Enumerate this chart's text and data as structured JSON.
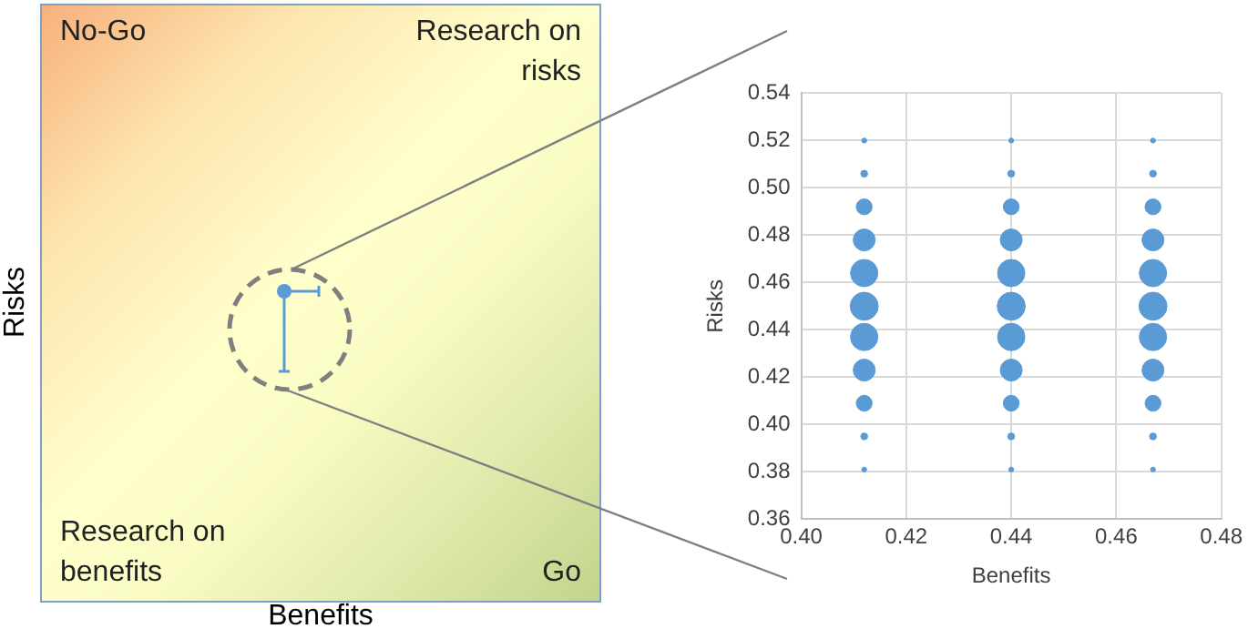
{
  "chart_data": [
    {
      "type": "other",
      "xlabel": "Benefits",
      "ylabel": "Risks",
      "annotations": [
        "No-Go",
        "Research on risks",
        "Research on benefits",
        "Go"
      ]
    },
    {
      "type": "bubble",
      "xlabel": "Benefits",
      "ylabel": "Risks",
      "color": "#5b9bd5",
      "x": [
        0.412,
        0.412,
        0.412,
        0.412,
        0.412,
        0.412,
        0.412,
        0.412,
        0.412,
        0.412,
        0.412,
        0.44,
        0.44,
        0.44,
        0.44,
        0.44,
        0.44,
        0.44,
        0.44,
        0.44,
        0.44,
        0.44,
        0.467,
        0.467,
        0.467,
        0.467,
        0.467,
        0.467,
        0.467,
        0.467,
        0.467,
        0.467,
        0.467
      ],
      "values": [
        0.381,
        0.395,
        0.409,
        0.423,
        0.437,
        0.45,
        0.464,
        0.478,
        0.492,
        0.506,
        0.52,
        0.381,
        0.395,
        0.409,
        0.423,
        0.437,
        0.45,
        0.464,
        0.478,
        0.492,
        0.506,
        0.52,
        0.381,
        0.395,
        0.409,
        0.423,
        0.437,
        0.45,
        0.464,
        0.478,
        0.492,
        0.506,
        0.52
      ],
      "sizes": [
        0.03,
        0.06,
        0.32,
        0.61,
        0.95,
        1,
        0.95,
        0.61,
        0.32,
        0.06,
        0.03,
        0.03,
        0.06,
        0.32,
        0.61,
        0.95,
        1,
        0.95,
        0.61,
        0.32,
        0.06,
        0.03,
        0.03,
        0.06,
        0.32,
        0.61,
        0.95,
        1,
        0.95,
        0.61,
        0.32,
        0.06,
        0.03
      ],
      "xlim": [
        0.4,
        0.48
      ],
      "xticks": [
        {
          "value": 0.4,
          "label": "0.40"
        },
        0.42,
        0.44,
        0.46,
        0.48
      ],
      "ylim": [
        0.36,
        0.54
      ],
      "yticks": [
        0.36,
        0.38,
        {
          "value": 0.4,
          "label": "0.40"
        },
        0.42,
        0.44,
        0.46,
        0.48,
        {
          "value": 0.5,
          "label": "0.50"
        },
        0.52,
        0.54
      ],
      "grid": true
    }
  ]
}
